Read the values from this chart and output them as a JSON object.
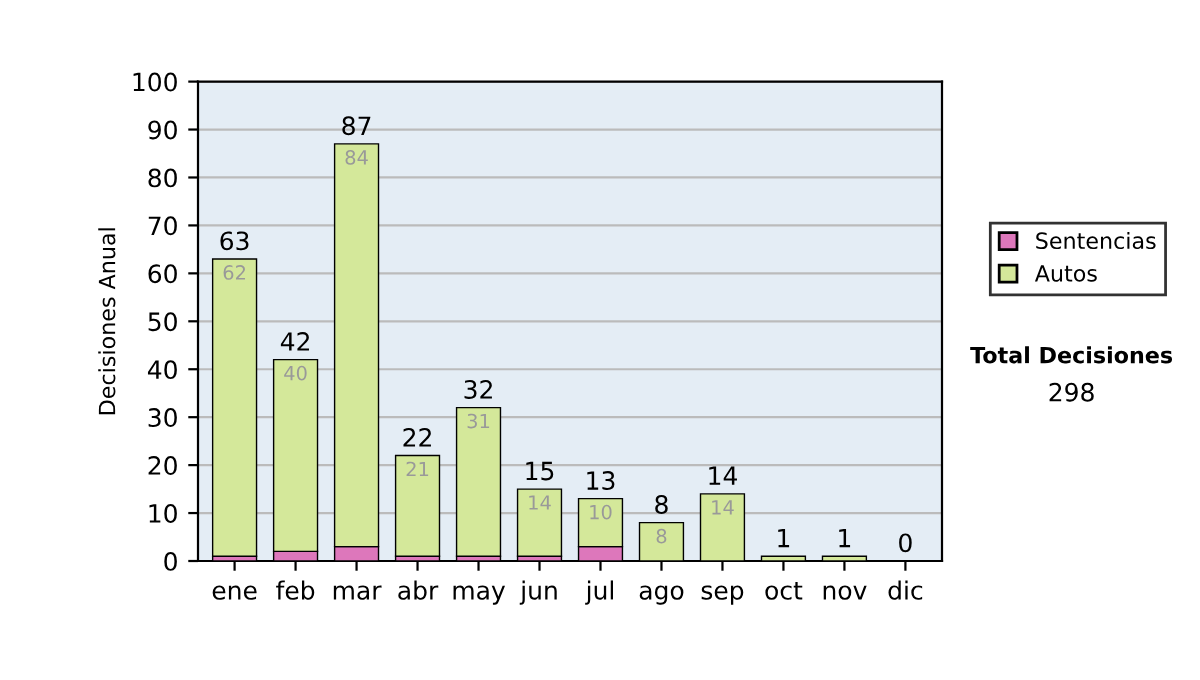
{
  "chart_data": {
    "type": "bar",
    "stacked": true,
    "ylabel": "Decisiones Anual",
    "categories": [
      "ene",
      "feb",
      "mar",
      "abr",
      "may",
      "jun",
      "jul",
      "ago",
      "sep",
      "oct",
      "nov",
      "dic"
    ],
    "series": [
      {
        "name": "Sentencias",
        "color": "#dd77bb",
        "values": [
          1,
          2,
          3,
          1,
          1,
          1,
          3,
          0,
          0,
          0,
          0,
          0
        ]
      },
      {
        "name": "Autos",
        "color": "#d4e89a",
        "values": [
          62,
          40,
          84,
          21,
          31,
          14,
          10,
          8,
          14,
          1,
          1,
          0
        ],
        "value_labels": [
          "62",
          "40",
          "84",
          "21",
          "31",
          "14",
          "10",
          "8",
          "14",
          null,
          null,
          null
        ]
      }
    ],
    "totals": [
      "63",
      "42",
      "87",
      "22",
      "32",
      "15",
      "13",
      "8",
      "14",
      "1",
      "1",
      "0"
    ],
    "ylim": [
      0,
      100
    ],
    "yticks": [
      0,
      10,
      20,
      30,
      40,
      50,
      60,
      70,
      80,
      90,
      100
    ],
    "grid": "y",
    "legend": "right",
    "annotations": [
      "Total Decisiones",
      "298"
    ]
  }
}
